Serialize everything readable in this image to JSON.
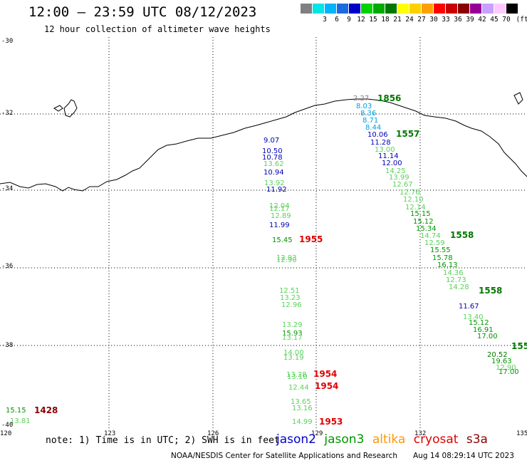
{
  "header": {
    "title": "12:00 – 23:59 UTC 08/12/2023",
    "subtitle": "12 hour collection of altimeter wave heights"
  },
  "scale": {
    "unit": "(ft)",
    "swatches": [
      {
        "label": "",
        "color": "#808080"
      },
      {
        "label": "3",
        "color": "#00e5e5"
      },
      {
        "label": "6",
        "color": "#00b4ff"
      },
      {
        "label": "9",
        "color": "#1c6ae0"
      },
      {
        "label": "12",
        "color": "#0000c8"
      },
      {
        "label": "15",
        "color": "#00d200"
      },
      {
        "label": "18",
        "color": "#00aa00"
      },
      {
        "label": "21",
        "color": "#007800"
      },
      {
        "label": "24",
        "color": "#ffff00"
      },
      {
        "label": "27",
        "color": "#ffd000"
      },
      {
        "label": "30",
        "color": "#ffa000"
      },
      {
        "label": "33",
        "color": "#ff0000"
      },
      {
        "label": "36",
        "color": "#c80000"
      },
      {
        "label": "39",
        "color": "#8b0000"
      },
      {
        "label": "42",
        "color": "#960096"
      },
      {
        "label": "45",
        "color": "#c8a0ff"
      },
      {
        "label": "70",
        "color": "#ffc8ff"
      },
      {
        "label": "",
        "color": "#000000"
      }
    ]
  },
  "axes": {
    "lat_labels": [
      "-30",
      "-32",
      "-34",
      "-36",
      "-38",
      "-40"
    ],
    "lon_labels": [
      "120",
      "123",
      "126",
      "129",
      "132",
      "135"
    ]
  },
  "track_values": [
    {
      "text": "2.27",
      "color": "#808080"
    },
    {
      "text": "1856",
      "color": "#007800",
      "bold": true
    },
    {
      "text": "8.03",
      "color": "#00a0e0"
    },
    {
      "text": "8.36",
      "color": "#00a0e0"
    },
    {
      "text": "8.71",
      "color": "#00a0e0"
    },
    {
      "text": "8.44",
      "color": "#00a0e0"
    },
    {
      "text": "10.06",
      "color": "#0000b4"
    },
    {
      "text": "1557",
      "color": "#007800",
      "bold": true
    },
    {
      "text": "11.28",
      "color": "#0000b4"
    },
    {
      "text": "13.00",
      "color": "#5ad25a"
    },
    {
      "text": "11.14",
      "color": "#0000b4"
    },
    {
      "text": "12.00",
      "color": "#0000b4"
    },
    {
      "text": "14.25",
      "color": "#5ad25a"
    },
    {
      "text": "13.99",
      "color": "#5ad25a"
    },
    {
      "text": "12.67",
      "color": "#5ad25a"
    },
    {
      "text": "12.76",
      "color": "#5ad25a"
    },
    {
      "text": "12.10",
      "color": "#5ad25a"
    },
    {
      "text": "12.14",
      "color": "#5ad25a"
    },
    {
      "text": "15.15",
      "color": "#009600"
    },
    {
      "text": "15.12",
      "color": "#009600"
    },
    {
      "text": "15.34",
      "color": "#009600"
    },
    {
      "text": "14.74",
      "color": "#5ad25a"
    },
    {
      "text": "1558",
      "color": "#007800",
      "bold": true
    },
    {
      "text": "12.59",
      "color": "#5ad25a"
    },
    {
      "text": "15.55",
      "color": "#009600"
    },
    {
      "text": "15.78",
      "color": "#009600"
    },
    {
      "text": "16.13",
      "color": "#009600"
    },
    {
      "text": "14.36",
      "color": "#5ad25a"
    },
    {
      "text": "12.73",
      "color": "#5ad25a"
    },
    {
      "text": "14.28",
      "color": "#5ad25a"
    },
    {
      "text": "1558",
      "color": "#007800",
      "bold": true
    },
    {
      "text": "11.67",
      "color": "#0000b4"
    },
    {
      "text": "13.40",
      "color": "#5ad25a"
    },
    {
      "text": "15.12",
      "color": "#009600"
    },
    {
      "text": "16.91",
      "color": "#009600"
    },
    {
      "text": "17.00",
      "color": "#009600"
    },
    {
      "text": "20.52",
      "color": "#007800"
    },
    {
      "text": "19.63",
      "color": "#009600"
    },
    {
      "text": "12.90",
      "color": "#5ad25a"
    },
    {
      "text": "17.00",
      "color": "#009600"
    },
    {
      "text": "155",
      "color": "#007800",
      "bold": true
    },
    {
      "text": "9.07",
      "color": "#0000b4"
    },
    {
      "text": "10.50",
      "color": "#0000b4"
    },
    {
      "text": "10.78",
      "color": "#0000b4"
    },
    {
      "text": "13.62",
      "color": "#5ad25a"
    },
    {
      "text": "10.94",
      "color": "#0000b4"
    },
    {
      "text": "13.92",
      "color": "#5ad25a"
    },
    {
      "text": "11.92",
      "color": "#0000b4"
    },
    {
      "text": "12.04",
      "color": "#5ad25a"
    },
    {
      "text": "12.17",
      "color": "#5ad25a"
    },
    {
      "text": "12.89",
      "color": "#5ad25a"
    },
    {
      "text": "11.99",
      "color": "#0000b4"
    },
    {
      "text": "15.45",
      "color": "#009600"
    },
    {
      "text": "1955",
      "color": "#e00000",
      "bold": true
    },
    {
      "text": "12.93",
      "color": "#5ad25a"
    },
    {
      "text": "12.90",
      "color": "#5ad25a"
    },
    {
      "text": "12.51",
      "color": "#5ad25a"
    },
    {
      "text": "13.23",
      "color": "#5ad25a"
    },
    {
      "text": "12.96",
      "color": "#5ad25a"
    },
    {
      "text": "13.29",
      "color": "#5ad25a"
    },
    {
      "text": "15.93",
      "color": "#009600"
    },
    {
      "text": "13.17",
      "color": "#5ad25a"
    },
    {
      "text": "14.00",
      "color": "#5ad25a"
    },
    {
      "text": "13.19",
      "color": "#5ad25a"
    },
    {
      "text": "13.28",
      "color": "#5ad25a"
    },
    {
      "text": "1954",
      "color": "#e00000",
      "bold": true
    },
    {
      "text": "13.10",
      "color": "#5ad25a"
    },
    {
      "text": "12.44",
      "color": "#5ad25a"
    },
    {
      "text": "1954",
      "color": "#e00000",
      "bold": true
    },
    {
      "text": "13.65",
      "color": "#5ad25a"
    },
    {
      "text": "13.16",
      "color": "#5ad25a"
    },
    {
      "text": "14.99",
      "color": "#5ad25a"
    },
    {
      "text": "1953",
      "color": "#e00000",
      "bold": true
    },
    {
      "text": "15.15",
      "color": "#009600"
    },
    {
      "text": "1428",
      "color": "#8b0000",
      "bold": true
    },
    {
      "text": "13.81",
      "color": "#5ad25a"
    }
  ],
  "footer": {
    "note": "note: 1) Time is in UTC; 2) SWH is in feet",
    "satellites": [
      {
        "name": "jason2",
        "color": "#0000c8"
      },
      {
        "name": "jason3",
        "color": "#009600"
      },
      {
        "name": "altika",
        "color": "#ff9600"
      },
      {
        "name": "cryosat",
        "color": "#e00000"
      },
      {
        "name": "s3a",
        "color": "#8b0000"
      }
    ],
    "credit": "NOAA/NESDIS Center for Satellite Applications and Research",
    "timestamp": "Aug 14 08:29:14 UTC 2023"
  }
}
